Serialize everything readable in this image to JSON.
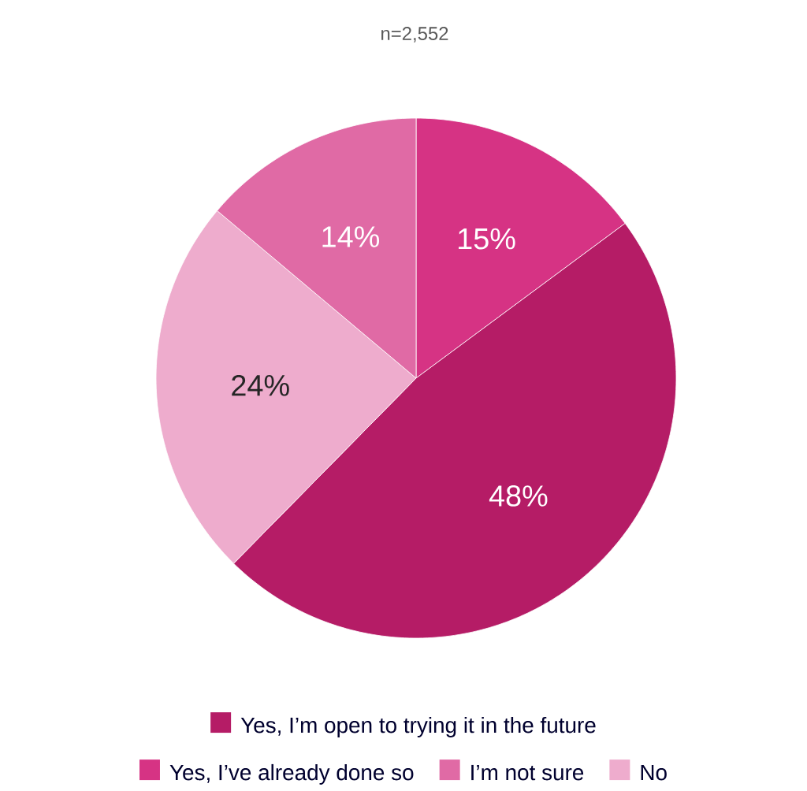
{
  "chart_data": {
    "type": "pie",
    "title": "n=2,552",
    "categories": [
      "Yes, I’ve already done so",
      "Yes, I’m open to trying it in the future",
      "No",
      "I’m not sure"
    ],
    "values": [
      15,
      48,
      24,
      14
    ],
    "value_labels": [
      "15%",
      "48%",
      "24%",
      "14%"
    ],
    "colors": [
      "#d63384",
      "#b51c66",
      "#eeaccd",
      "#e06aa5"
    ],
    "legend": "bottom"
  }
}
